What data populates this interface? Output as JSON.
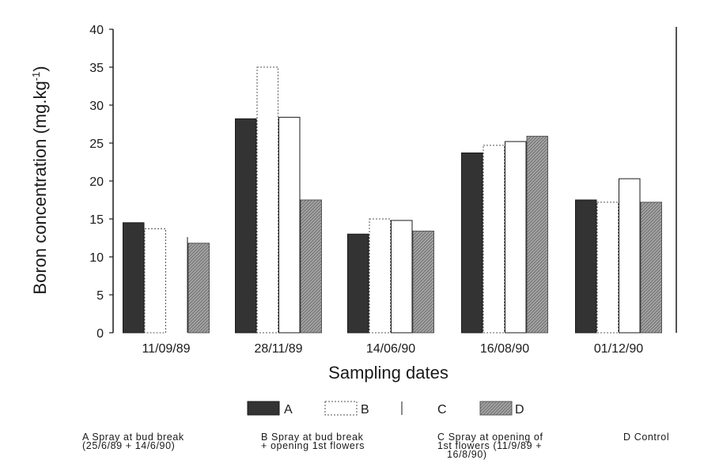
{
  "chart_data": {
    "type": "bar",
    "xlabel": "Sampling dates",
    "ylabel": "Boron concentration (mg.kg",
    "ylabel_sup": "-1",
    "ylabel_close": ")",
    "ylim": [
      0,
      40
    ],
    "yticks": [
      0,
      5,
      10,
      15,
      20,
      25,
      30,
      35,
      40
    ],
    "categories": [
      "11/09/89",
      "28/11/89",
      "14/06/90",
      "16/08/90",
      "01/12/90"
    ],
    "series": [
      {
        "name": "A",
        "color": "#333333",
        "values": [
          14.5,
          28.2,
          13.0,
          23.7,
          17.5
        ]
      },
      {
        "name": "B",
        "color": "#ffffff",
        "values": [
          13.7,
          35.0,
          15.0,
          24.7,
          17.2
        ]
      },
      {
        "name": "C",
        "color": "#ffffff",
        "values": [
          null,
          28.4,
          14.8,
          25.2,
          20.3
        ]
      },
      {
        "name": "D",
        "color": "#9a9a9a",
        "values": [
          11.8,
          17.5,
          13.4,
          25.9,
          17.2
        ]
      }
    ],
    "grid": false,
    "legend_position": "bottom"
  },
  "notes": [
    {
      "key": "A",
      "line1": "A Spray at bud break",
      "line2": "(25/6/89 + 14/6/90)",
      "line3": ""
    },
    {
      "key": "B",
      "line1": "B Spray at bud break",
      "line2": "+ opening 1st flowers",
      "line3": ""
    },
    {
      "key": "C",
      "line1": "C Spray at opening of",
      "line2": "1st flowers (11/9/89 +",
      "line3": "16/8/90)"
    },
    {
      "key": "D",
      "line1": "D Control",
      "line2": "",
      "line3": ""
    }
  ]
}
